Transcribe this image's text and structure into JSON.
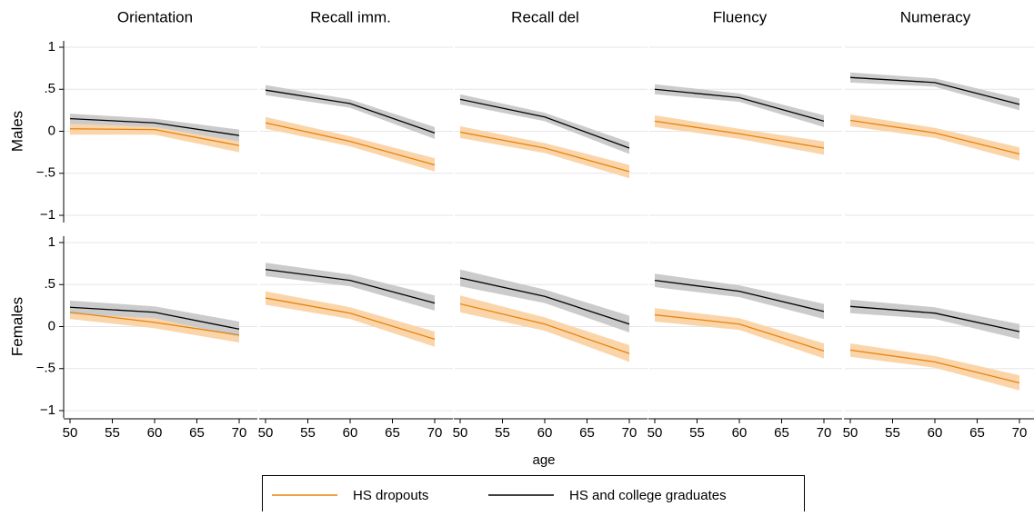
{
  "chart_data": {
    "type": "line",
    "xlabel": "age",
    "x": [
      50,
      60,
      70
    ],
    "xlim": [
      50,
      70
    ],
    "xticks": [
      50,
      55,
      60,
      65,
      70
    ],
    "ylim": [
      -1,
      1
    ],
    "yticks": [
      {
        "value": -1,
        "label": "−1"
      },
      {
        "value": -0.5,
        "label": "−.5"
      },
      0,
      {
        "value": 0.5,
        "label": ".5"
      },
      1
    ],
    "grid": true,
    "column_titles": [
      "Orientation",
      "Recall imm.",
      "Recall del",
      "Fluency",
      "Numeracy"
    ],
    "row_titles": [
      "Males",
      "Females"
    ],
    "series": [
      {
        "name": "HS dropouts",
        "color": "#e8820c",
        "band_color": "#fbd5aa"
      },
      {
        "name": "HS and college graduates",
        "color": "#000000",
        "band_color": "#cbcbcb"
      }
    ],
    "panels": [
      [
        {
          "lines": [
            {
              "values": [
                0.03,
                0.02,
                -0.17
              ],
              "lower": [
                -0.04,
                -0.04,
                -0.25
              ],
              "upper": [
                0.1,
                0.08,
                -0.09
              ]
            },
            {
              "values": [
                0.15,
                0.1,
                -0.05
              ],
              "lower": [
                0.09,
                0.05,
                -0.12
              ],
              "upper": [
                0.21,
                0.15,
                0.02
              ]
            }
          ]
        },
        {
          "lines": [
            {
              "values": [
                0.1,
                -0.12,
                -0.4
              ],
              "lower": [
                0.03,
                -0.18,
                -0.48
              ],
              "upper": [
                0.17,
                -0.06,
                -0.32
              ]
            },
            {
              "values": [
                0.49,
                0.33,
                -0.02
              ],
              "lower": [
                0.43,
                0.28,
                -0.09
              ],
              "upper": [
                0.55,
                0.38,
                0.05
              ]
            }
          ]
        },
        {
          "lines": [
            {
              "values": [
                -0.01,
                -0.2,
                -0.48
              ],
              "lower": [
                -0.08,
                -0.26,
                -0.56
              ],
              "upper": [
                0.06,
                -0.14,
                -0.4
              ]
            },
            {
              "values": [
                0.38,
                0.17,
                -0.2
              ],
              "lower": [
                0.32,
                0.12,
                -0.27
              ],
              "upper": [
                0.44,
                0.22,
                -0.13
              ]
            }
          ]
        },
        {
          "lines": [
            {
              "values": [
                0.12,
                -0.03,
                -0.2
              ],
              "lower": [
                0.05,
                -0.09,
                -0.28
              ],
              "upper": [
                0.19,
                0.03,
                -0.12
              ]
            },
            {
              "values": [
                0.5,
                0.4,
                0.12
              ],
              "lower": [
                0.44,
                0.35,
                0.05
              ],
              "upper": [
                0.56,
                0.45,
                0.19
              ]
            }
          ]
        },
        {
          "lines": [
            {
              "values": [
                0.13,
                -0.02,
                -0.27
              ],
              "lower": [
                0.06,
                -0.08,
                -0.35
              ],
              "upper": [
                0.2,
                0.04,
                -0.19
              ]
            },
            {
              "values": [
                0.64,
                0.58,
                0.32
              ],
              "lower": [
                0.58,
                0.53,
                0.25
              ],
              "upper": [
                0.7,
                0.63,
                0.39
              ]
            }
          ]
        }
      ],
      [
        {
          "lines": [
            {
              "values": [
                0.17,
                0.05,
                -0.1
              ],
              "lower": [
                0.09,
                -0.02,
                -0.19
              ],
              "upper": [
                0.25,
                0.12,
                -0.01
              ]
            },
            {
              "values": [
                0.23,
                0.17,
                -0.03
              ],
              "lower": [
                0.15,
                0.1,
                -0.12
              ],
              "upper": [
                0.31,
                0.24,
                0.06
              ]
            }
          ]
        },
        {
          "lines": [
            {
              "values": [
                0.34,
                0.16,
                -0.15
              ],
              "lower": [
                0.26,
                0.09,
                -0.24
              ],
              "upper": [
                0.42,
                0.23,
                -0.06
              ]
            },
            {
              "values": [
                0.68,
                0.55,
                0.28
              ],
              "lower": [
                0.6,
                0.48,
                0.19
              ],
              "upper": [
                0.76,
                0.62,
                0.37
              ]
            }
          ]
        },
        {
          "lines": [
            {
              "values": [
                0.27,
                0.03,
                -0.32
              ],
              "lower": [
                0.17,
                -0.05,
                -0.42
              ],
              "upper": [
                0.37,
                0.11,
                -0.22
              ]
            },
            {
              "values": [
                0.58,
                0.36,
                0.03
              ],
              "lower": [
                0.48,
                0.28,
                -0.07
              ],
              "upper": [
                0.68,
                0.44,
                0.13
              ]
            }
          ]
        },
        {
          "lines": [
            {
              "values": [
                0.14,
                0.03,
                -0.29
              ],
              "lower": [
                0.06,
                -0.04,
                -0.38
              ],
              "upper": [
                0.22,
                0.1,
                -0.2
              ]
            },
            {
              "values": [
                0.55,
                0.42,
                0.18
              ],
              "lower": [
                0.47,
                0.35,
                0.09
              ],
              "upper": [
                0.63,
                0.49,
                0.27
              ]
            }
          ]
        },
        {
          "lines": [
            {
              "values": [
                -0.28,
                -0.42,
                -0.67
              ],
              "lower": [
                -0.36,
                -0.49,
                -0.76
              ],
              "upper": [
                -0.2,
                -0.35,
                -0.58
              ]
            },
            {
              "values": [
                0.24,
                0.16,
                -0.06
              ],
              "lower": [
                0.16,
                0.09,
                -0.15
              ],
              "upper": [
                0.32,
                0.23,
                0.03
              ]
            }
          ]
        }
      ]
    ]
  }
}
